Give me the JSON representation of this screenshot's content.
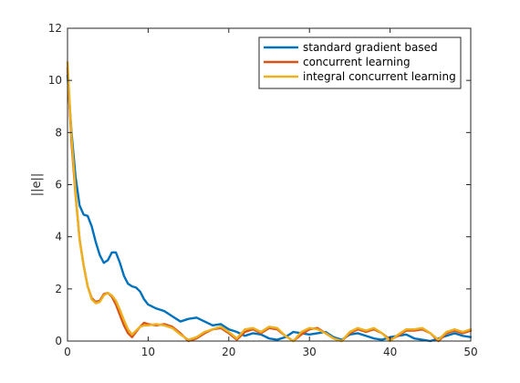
{
  "chart_data": {
    "type": "line",
    "title": "",
    "xlabel": "",
    "ylabel": "||e||",
    "xlim": [
      0,
      50
    ],
    "ylim": [
      0,
      12
    ],
    "xticks": [
      0,
      10,
      20,
      30,
      40,
      50
    ],
    "yticks": [
      0,
      2,
      4,
      6,
      8,
      10,
      12
    ],
    "grid": false,
    "legend_position": "top-right",
    "series": [
      {
        "name": "standard gradient based",
        "color": "#0072BD",
        "x": [
          0,
          0.5,
          1,
          1.5,
          2,
          2.5,
          3,
          3.5,
          4,
          4.5,
          5,
          5.5,
          6,
          6.5,
          7,
          7.5,
          8,
          8.5,
          9,
          9.5,
          10,
          11,
          12,
          13,
          14,
          15,
          16,
          17,
          18,
          19,
          20,
          21,
          22,
          23,
          24,
          25,
          26,
          27,
          28,
          29,
          30,
          31,
          32,
          33,
          34,
          35,
          36,
          37,
          38,
          39,
          40,
          41,
          42,
          43,
          44,
          45,
          46,
          47,
          48,
          49,
          50
        ],
        "y": [
          10.2,
          8.0,
          6.3,
          5.2,
          4.85,
          4.8,
          4.4,
          3.8,
          3.3,
          3.0,
          3.1,
          3.4,
          3.4,
          3.0,
          2.5,
          2.2,
          2.1,
          2.05,
          1.9,
          1.6,
          1.4,
          1.25,
          1.15,
          0.95,
          0.75,
          0.85,
          0.9,
          0.75,
          0.6,
          0.65,
          0.45,
          0.35,
          0.2,
          0.3,
          0.25,
          0.1,
          0.05,
          0.15,
          0.35,
          0.3,
          0.25,
          0.3,
          0.35,
          0.15,
          0.05,
          0.25,
          0.3,
          0.2,
          0.1,
          0.05,
          0.15,
          0.2,
          0.25,
          0.1,
          0.05,
          0.0,
          0.1,
          0.2,
          0.3,
          0.2,
          0.15
        ]
      },
      {
        "name": "concurrent learning",
        "color": "#D95319",
        "x": [
          0,
          0.5,
          1,
          1.5,
          2,
          2.5,
          3,
          3.5,
          4,
          4.5,
          5,
          5.5,
          6,
          6.5,
          7,
          7.5,
          8,
          8.5,
          9,
          9.5,
          10,
          11,
          12,
          13,
          14,
          15,
          16,
          17,
          18,
          19,
          20,
          21,
          22,
          23,
          24,
          25,
          26,
          27,
          28,
          29,
          30,
          31,
          32,
          33,
          34,
          35,
          36,
          37,
          38,
          39,
          40,
          41,
          42,
          43,
          44,
          45,
          46,
          47,
          48,
          49,
          50
        ],
        "y": [
          10.5,
          7.6,
          5.6,
          3.9,
          2.9,
          2.1,
          1.65,
          1.5,
          1.55,
          1.8,
          1.85,
          1.7,
          1.4,
          1.0,
          0.6,
          0.3,
          0.15,
          0.35,
          0.55,
          0.7,
          0.65,
          0.6,
          0.65,
          0.55,
          0.3,
          0.0,
          0.1,
          0.3,
          0.45,
          0.5,
          0.3,
          0.05,
          0.35,
          0.45,
          0.3,
          0.5,
          0.45,
          0.2,
          0.0,
          0.25,
          0.45,
          0.5,
          0.3,
          0.1,
          0.0,
          0.3,
          0.45,
          0.35,
          0.45,
          0.3,
          0.05,
          0.2,
          0.4,
          0.4,
          0.45,
          0.3,
          0.0,
          0.3,
          0.4,
          0.3,
          0.4
        ]
      },
      {
        "name": "integral concurrent learning",
        "color": "#EDB120",
        "x": [
          0,
          0.5,
          1,
          1.5,
          2,
          2.5,
          3,
          3.5,
          4,
          4.5,
          5,
          5.5,
          6,
          6.5,
          7,
          7.5,
          8,
          8.5,
          9,
          9.5,
          10,
          11,
          12,
          13,
          14,
          15,
          16,
          17,
          18,
          19,
          20,
          21,
          22,
          23,
          24,
          25,
          26,
          27,
          28,
          29,
          30,
          31,
          32,
          33,
          34,
          35,
          36,
          37,
          38,
          39,
          40,
          41,
          42,
          43,
          44,
          45,
          46,
          47,
          48,
          49,
          50
        ],
        "y": [
          10.7,
          7.8,
          5.7,
          3.9,
          2.9,
          2.1,
          1.6,
          1.45,
          1.5,
          1.75,
          1.85,
          1.75,
          1.55,
          1.2,
          0.8,
          0.45,
          0.25,
          0.4,
          0.55,
          0.6,
          0.6,
          0.65,
          0.6,
          0.5,
          0.25,
          0.05,
          0.15,
          0.35,
          0.45,
          0.55,
          0.35,
          0.1,
          0.45,
          0.5,
          0.35,
          0.55,
          0.5,
          0.2,
          0.0,
          0.35,
          0.5,
          0.45,
          0.3,
          0.1,
          0.0,
          0.35,
          0.5,
          0.4,
          0.5,
          0.3,
          0.0,
          0.25,
          0.45,
          0.45,
          0.5,
          0.3,
          0.05,
          0.35,
          0.45,
          0.35,
          0.45
        ]
      }
    ]
  }
}
